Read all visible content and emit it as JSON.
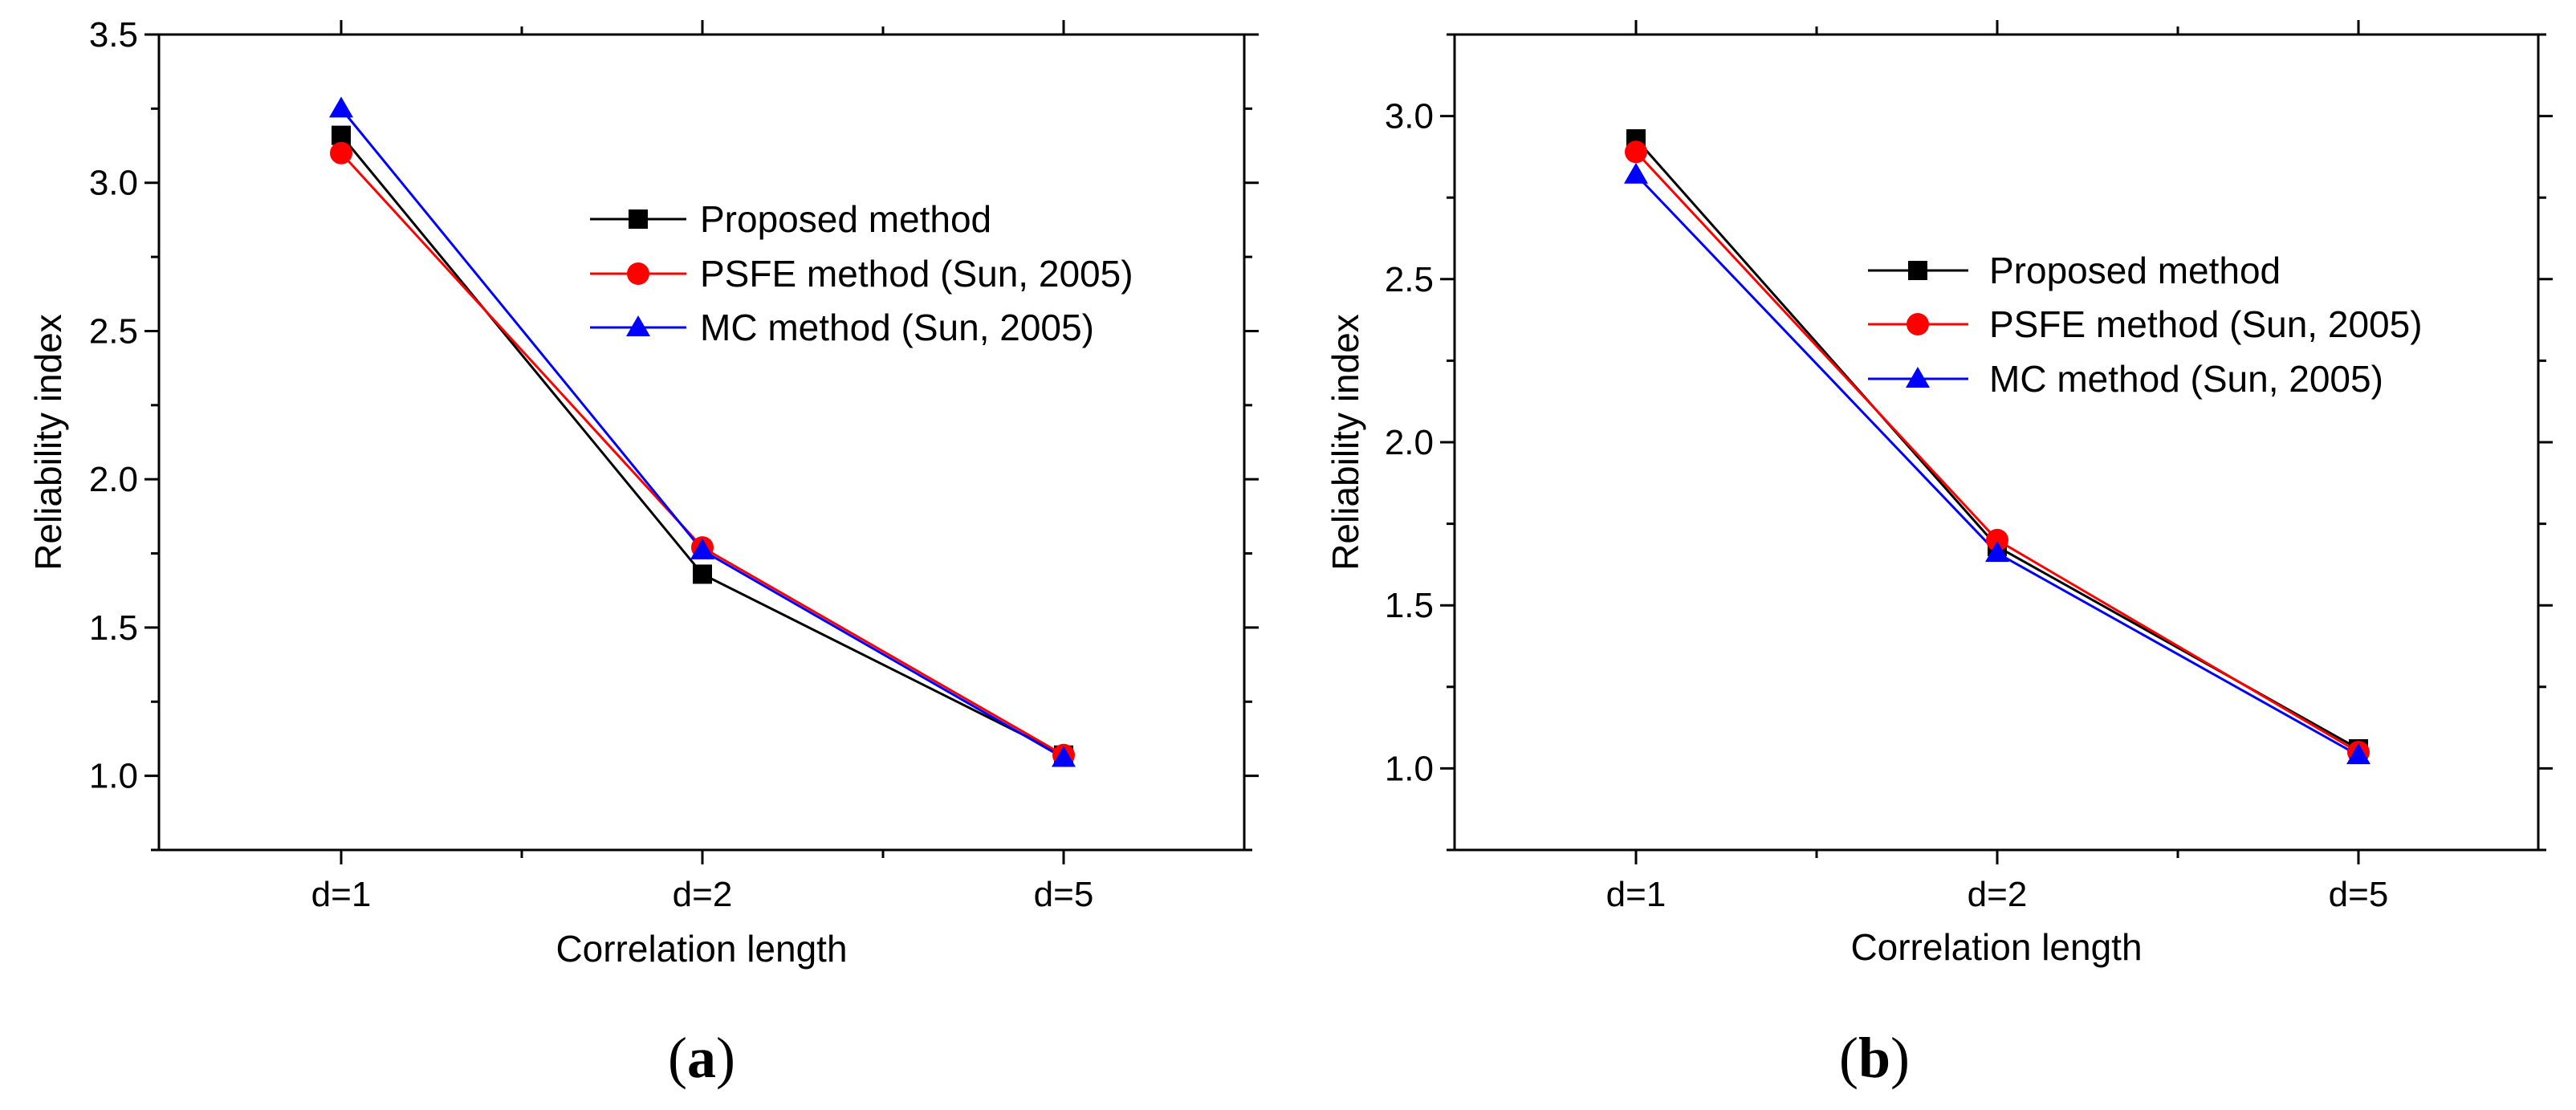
{
  "chart_data": [
    {
      "type": "line",
      "panel_label": {
        "open": "(",
        "letter": "a",
        "close": ")"
      },
      "xlabel": "Correlation length",
      "ylabel": "Reliability index",
      "categories": [
        "d=1",
        "d=2",
        "d=5"
      ],
      "ylim": [
        0.75,
        3.5
      ],
      "yticks": [
        1.0,
        1.5,
        2.0,
        2.5,
        3.0,
        3.5
      ],
      "ytick_labels": [
        "1.0",
        "1.5",
        "2.0",
        "2.5",
        "3.0",
        "3.5"
      ],
      "legend_position": "top-right",
      "series": [
        {
          "name": "Proposed method",
          "color": "#000000",
          "marker": "square",
          "values": [
            3.16,
            1.68,
            1.07
          ]
        },
        {
          "name": "PSFE method (Sun, 2005)",
          "color": "#ff0000",
          "marker": "circle",
          "values": [
            3.1,
            1.77,
            1.07
          ]
        },
        {
          "name": "MC method (Sun, 2005)",
          "color": "#0000ff",
          "marker": "triangle",
          "values": [
            3.25,
            1.76,
            1.06
          ]
        }
      ]
    },
    {
      "type": "line",
      "panel_label": {
        "open": "(",
        "letter": "b",
        "close": ")"
      },
      "xlabel": "Correlation length",
      "ylabel": "Reliability index",
      "categories": [
        "d=1",
        "d=2",
        "d=5"
      ],
      "ylim": [
        0.75,
        3.25
      ],
      "yticks": [
        1.0,
        1.5,
        2.0,
        2.5,
        3.0
      ],
      "ytick_labels": [
        "1.0",
        "1.5",
        "2.0",
        "2.5",
        "3.0"
      ],
      "legend_position": "center-right",
      "series": [
        {
          "name": "Proposed method",
          "color": "#000000",
          "marker": "square",
          "values": [
            2.93,
            1.68,
            1.06
          ]
        },
        {
          "name": "PSFE method (Sun, 2005)",
          "color": "#ff0000",
          "marker": "circle",
          "values": [
            2.89,
            1.7,
            1.05
          ]
        },
        {
          "name": "MC method (Sun, 2005)",
          "color": "#0000ff",
          "marker": "triangle",
          "values": [
            2.82,
            1.66,
            1.04
          ]
        }
      ]
    }
  ]
}
